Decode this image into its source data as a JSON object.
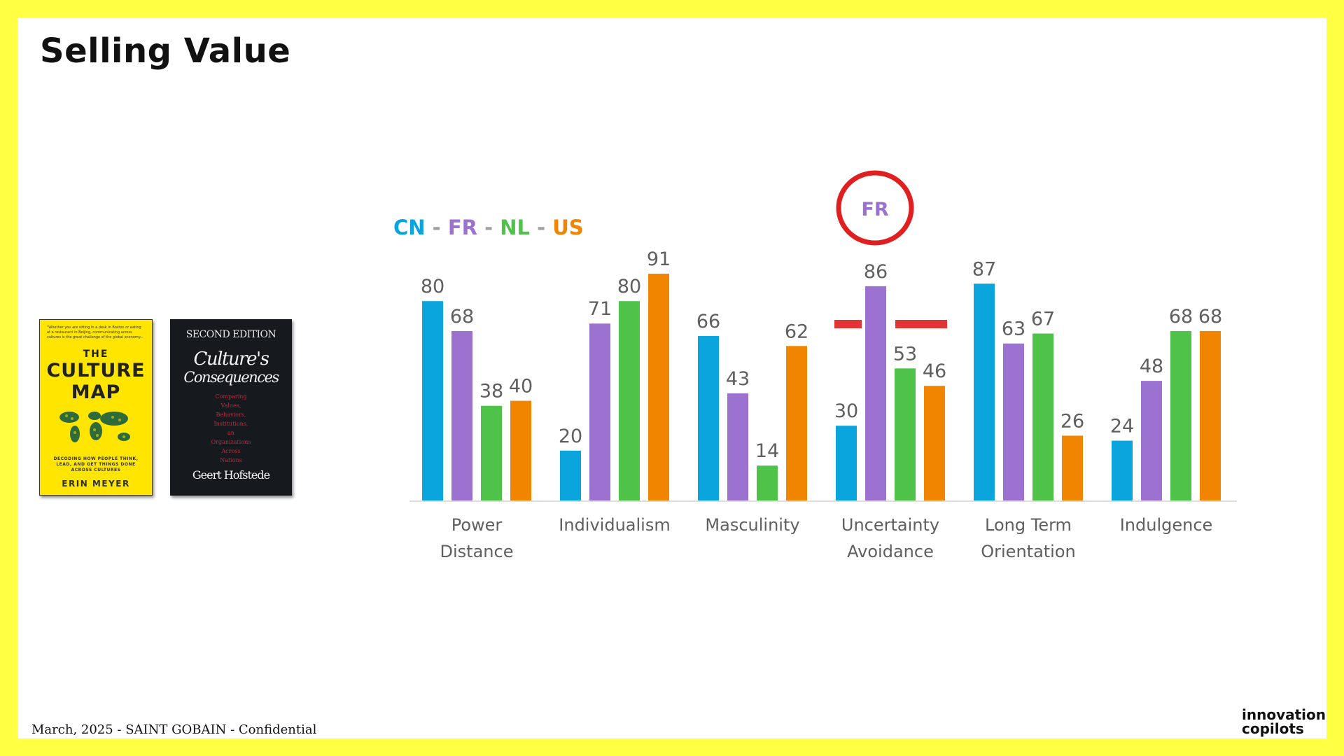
{
  "slide": {
    "title": "Selling Value",
    "footer": "March, 2025 - SAINT GOBAIN - Confidential",
    "brand_line1": "innovation",
    "brand_line2": "copilots"
  },
  "books": {
    "culture_map": {
      "blurb": "\"Whether you are sitting in a desk in Boston or eating at a restaurant in Beijing, communicating across cultures is the great challenge of the global economy... Erin Meyer shows you how to get it right in the most important book.\" —REID HOFFMAN AND STANLEY GRAHAM",
      "the": "THE",
      "title_line1": "CULTURE",
      "title_line2": "MAP",
      "subtitle": "DECODING HOW PEOPLE THINK, LEAD, AND GET THINGS DONE ACROSS CULTURES",
      "author": "ERIN MEYER",
      "accent_color": "#ffe500"
    },
    "cultures_consequences": {
      "edition": "SECOND EDITION",
      "title_line1": "Culture's",
      "title_line2": "Consequences",
      "subtitle_lines": [
        "Comparing",
        "Values,",
        "Behaviors,",
        "Institutions,",
        "an",
        "Organizations",
        "Across",
        "Nations"
      ],
      "author": "Geert Hofstede",
      "accent_color": "#161a1f"
    }
  },
  "legend": {
    "items": [
      {
        "label": "CN",
        "color": "#0aa5dd"
      },
      {
        "label": "FR",
        "color": "#9b72cf"
      },
      {
        "label": "NL",
        "color": "#4fc24a"
      },
      {
        "label": "US",
        "color": "#f28500"
      }
    ],
    "separator": "-"
  },
  "highlight": {
    "label": "FR",
    "circle_color": "#e02020",
    "dash_color": "#e02020"
  },
  "chart_data": {
    "type": "bar",
    "categories": [
      [
        "Power",
        "Distance"
      ],
      [
        "Individualism"
      ],
      [
        "Masculinity"
      ],
      [
        "Uncertainty",
        "Avoidance"
      ],
      [
        "Long Term",
        "Orientation"
      ],
      [
        "Indulgence"
      ]
    ],
    "series": [
      {
        "name": "CN",
        "color": "#0aa5dd",
        "values": [
          80,
          20,
          66,
          30,
          87,
          24
        ]
      },
      {
        "name": "FR",
        "color": "#9b72cf",
        "values": [
          68,
          71,
          43,
          86,
          63,
          48
        ]
      },
      {
        "name": "NL",
        "color": "#4fc24a",
        "values": [
          38,
          80,
          14,
          53,
          67,
          68
        ]
      },
      {
        "name": "US",
        "color": "#f28500",
        "values": [
          40,
          91,
          62,
          46,
          26,
          68
        ]
      }
    ],
    "ylim": [
      0,
      100
    ],
    "grid": false,
    "legend": "top-left",
    "label_color": "#5f5f5f",
    "baseline_color": "#dddddd"
  }
}
